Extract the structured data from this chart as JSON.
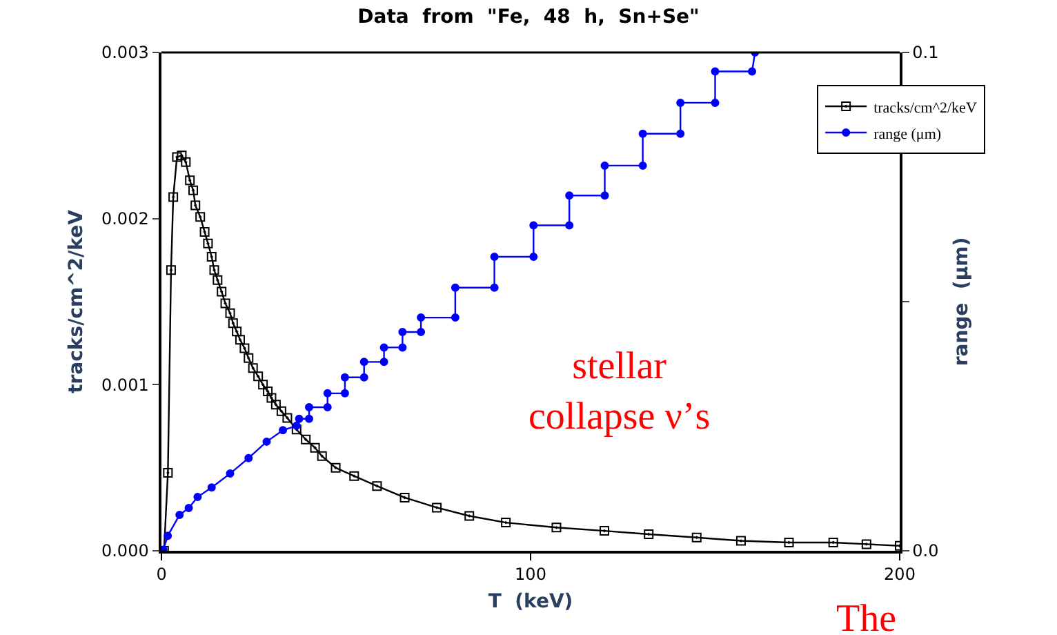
{
  "chart_data": {
    "type": "line",
    "title": "Data  from  \"Fe,  48  h,  Sn+Se\"",
    "xlabel": "T  (keV)",
    "ylabel": "tracks/cm^2/keV",
    "y2label": "range  (μm)",
    "annotations": [
      "stellar\ncollapse ν’s",
      "The"
    ],
    "xlim": [
      0,
      200
    ],
    "xticks": [
      0,
      100,
      200
    ],
    "ylim": [
      0,
      0.003
    ],
    "yticks": [
      {
        "value": 0,
        "label": "0.000"
      },
      {
        "value": 0.001,
        "label": "0.001"
      },
      {
        "value": 0.002,
        "label": "0.002"
      },
      {
        "value": 0.003,
        "label": "0.003"
      }
    ],
    "y2lim": [
      0,
      0.1
    ],
    "y2ticks": [
      {
        "value": 0,
        "label": "0.0"
      },
      {
        "value": 0.05,
        "label": null
      },
      {
        "value": 0.1,
        "label": "0.1"
      }
    ],
    "legend": "top right",
    "series": [
      {
        "name": "tracks/cm^2/keV",
        "color": "#000000",
        "marker": "square",
        "x": [
          0.7,
          1.75,
          2.6,
          3.2,
          4.2,
          5.5,
          6.6,
          7.7,
          8.6,
          9.2,
          10.5,
          11.7,
          12.6,
          13.6,
          14.3,
          15.2,
          16.3,
          17.3,
          18.6,
          19.4,
          20.4,
          21.3,
          22.5,
          23.6,
          24.8,
          26.2,
          27.5,
          28.8,
          29.8,
          31.0,
          32.5,
          34.1,
          36.6,
          39.1,
          41.6,
          43.5,
          47.2,
          52.2,
          58.4,
          65.9,
          74.6,
          83.4,
          93.3,
          107,
          120,
          132,
          145,
          157,
          170,
          182,
          191,
          200
        ],
        "values": [
          0.0,
          0.00047,
          0.00169,
          0.00213,
          0.00237,
          0.00238,
          0.00234,
          0.00223,
          0.00217,
          0.00208,
          0.00201,
          0.00192,
          0.00185,
          0.00177,
          0.00169,
          0.00163,
          0.00156,
          0.00149,
          0.00143,
          0.00137,
          0.00132,
          0.00127,
          0.00122,
          0.00116,
          0.0011,
          0.00105,
          0.001,
          0.00096,
          0.00092,
          0.00088,
          0.00084,
          0.0008,
          0.00073,
          0.00067,
          0.00062,
          0.00057,
          0.0005,
          0.00045,
          0.00039,
          0.00032,
          0.00026,
          0.00021,
          0.00017,
          0.00014,
          0.00012,
          0.0001,
          8e-05,
          6e-05,
          5e-05,
          5e-05,
          4e-05,
          3e-05
        ]
      },
      {
        "name": "range (μm)",
        "color": "#0000ff",
        "marker": "circle",
        "axis": "y2",
        "x": [
          0.5,
          1.7,
          4.9,
          7.4,
          9.8,
          13.6,
          18.6,
          23.6,
          28.5,
          32.9,
          36.6,
          37.3,
          40.0,
          40.0,
          45.0,
          45.0,
          49.7,
          49.7,
          54.9,
          54.9,
          60.3,
          60.3,
          65.3,
          65.3,
          70.3,
          70.3,
          79.6,
          79.6,
          90.2,
          90.2,
          100.8,
          100.8,
          110.5,
          110.5,
          120.1,
          120.1,
          130.4,
          130.4,
          140.6,
          140.6,
          150.0,
          150.0,
          160.0,
          160.8
        ],
        "values": [
          0.0002,
          0.003,
          0.0072,
          0.0086,
          0.0108,
          0.0127,
          0.0155,
          0.0186,
          0.0219,
          0.0242,
          0.0251,
          0.0265,
          0.0265,
          0.0288,
          0.0288,
          0.0316,
          0.0316,
          0.0348,
          0.0348,
          0.0379,
          0.0379,
          0.0408,
          0.0408,
          0.0439,
          0.0439,
          0.0468,
          0.0468,
          0.0528,
          0.0528,
          0.059,
          0.059,
          0.0653,
          0.0653,
          0.0713,
          0.0713,
          0.0773,
          0.0773,
          0.0837,
          0.0837,
          0.0899,
          0.0899,
          0.0962,
          0.0962,
          0.1
        ]
      }
    ]
  }
}
